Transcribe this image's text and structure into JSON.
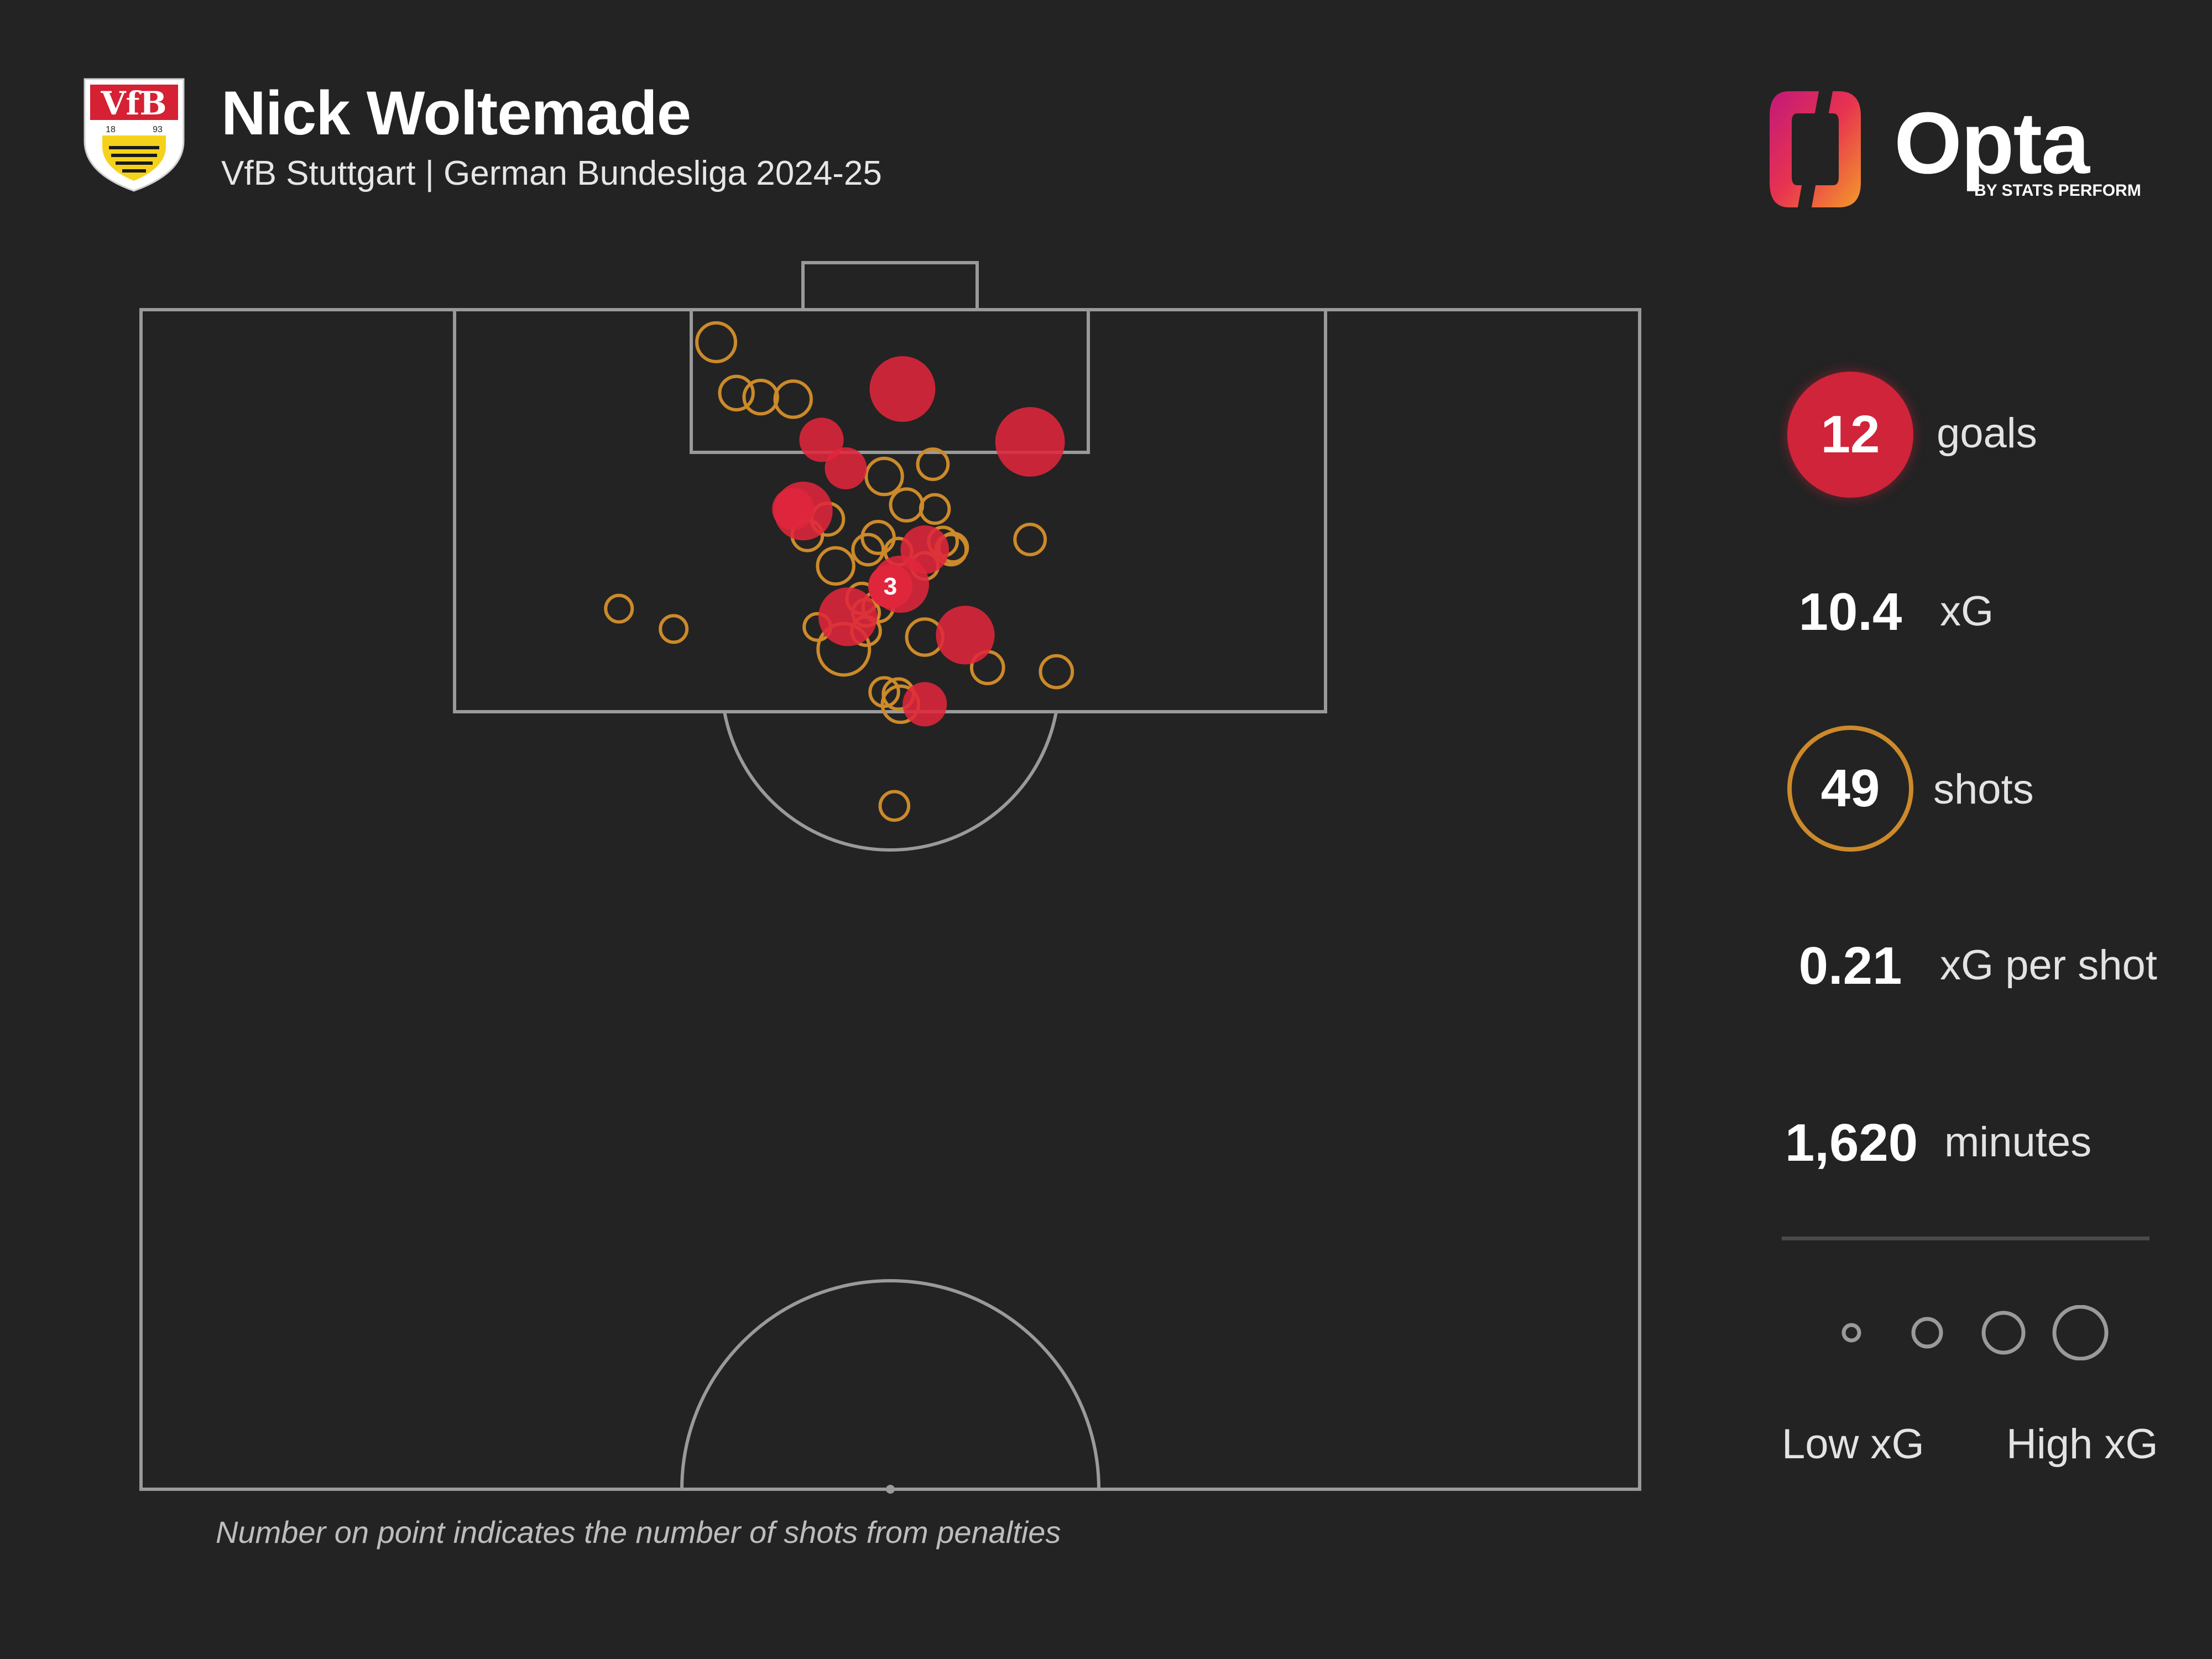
{
  "header": {
    "title": "Nick Woltemade",
    "subtitle": "VfB Stuttgart | German Bundesliga 2024-25"
  },
  "brand": {
    "logo_word": "Opta",
    "logo_sub": "BY STATS PERFORM",
    "crest_lettering": "VfB",
    "crest_year_left": "18",
    "crest_year_right": "93"
  },
  "colors": {
    "background": "#232323",
    "goal": "#e0263b",
    "shot": "#cc8a2a",
    "pitch_lines": "#9a9a9a"
  },
  "stats": {
    "goals": {
      "value": "12",
      "label": "goals"
    },
    "xg": {
      "value": "10.4",
      "label": "xG"
    },
    "shots": {
      "value": "49",
      "label": "shots"
    },
    "xg_per_shot": {
      "value": "0.21",
      "label": "xG per shot"
    },
    "minutes": {
      "value": "1,620",
      "label": "minutes"
    }
  },
  "legend": {
    "low": "Low xG",
    "high": "High xG",
    "sizes": [
      0.05,
      0.2,
      0.4,
      0.7
    ]
  },
  "footnote": "Number on point indicates the number of shots from penalties",
  "chart_data": {
    "type": "scatter",
    "title": "",
    "xlabel": "",
    "ylabel": "",
    "pitch": "half-pitch, attacking upward",
    "units": "x = yards across pitch width (0-74), y = yards from goal line",
    "xlim": [
      0,
      74
    ],
    "ylim": [
      0,
      58
    ],
    "shots": [
      {
        "x": 28.4,
        "y": 1.6,
        "xg": 0.12,
        "goal": false
      },
      {
        "x": 29.4,
        "y": 4.1,
        "xg": 0.08,
        "goal": false
      },
      {
        "x": 30.6,
        "y": 4.3,
        "xg": 0.08,
        "goal": false
      },
      {
        "x": 32.2,
        "y": 4.4,
        "xg": 0.1,
        "goal": false
      },
      {
        "x": 37.6,
        "y": 3.9,
        "xg": 0.4,
        "goal": true
      },
      {
        "x": 43.9,
        "y": 6.5,
        "xg": 0.46,
        "goal": true
      },
      {
        "x": 33.6,
        "y": 6.4,
        "xg": 0.14,
        "goal": true
      },
      {
        "x": 34.8,
        "y": 7.8,
        "xg": 0.12,
        "goal": true
      },
      {
        "x": 36.7,
        "y": 8.2,
        "xg": 0.1,
        "goal": false
      },
      {
        "x": 39.1,
        "y": 7.6,
        "xg": 0.06,
        "goal": false
      },
      {
        "x": 32.7,
        "y": 9.9,
        "xg": 0.3,
        "goal": true
      },
      {
        "x": 32.2,
        "y": 9.8,
        "xg": 0.12,
        "goal": true
      },
      {
        "x": 33.9,
        "y": 10.3,
        "xg": 0.07,
        "goal": false
      },
      {
        "x": 37.8,
        "y": 9.6,
        "xg": 0.07,
        "goal": false
      },
      {
        "x": 39.2,
        "y": 9.8,
        "xg": 0.05,
        "goal": false
      },
      {
        "x": 32.9,
        "y": 11.1,
        "xg": 0.06,
        "goal": false
      },
      {
        "x": 36.4,
        "y": 11.2,
        "xg": 0.07,
        "goal": false
      },
      {
        "x": 35.9,
        "y": 11.8,
        "xg": 0.06,
        "goal": false
      },
      {
        "x": 37.4,
        "y": 11.9,
        "xg": 0.04,
        "goal": false
      },
      {
        "x": 38.7,
        "y": 11.8,
        "xg": 0.18,
        "goal": true
      },
      {
        "x": 39.6,
        "y": 11.4,
        "xg": 0.05,
        "goal": false
      },
      {
        "x": 40.0,
        "y": 11.8,
        "xg": 0.06,
        "goal": false
      },
      {
        "x": 40.1,
        "y": 11.7,
        "xg": 0.05,
        "goal": false
      },
      {
        "x": 43.9,
        "y": 11.3,
        "xg": 0.06,
        "goal": false
      },
      {
        "x": 38.7,
        "y": 12.6,
        "xg": 0.04,
        "goal": false
      },
      {
        "x": 34.3,
        "y": 12.6,
        "xg": 0.1,
        "goal": false
      },
      {
        "x": 37.5,
        "y": 13.5,
        "xg": 0.28,
        "goal": true
      },
      {
        "x": 35.6,
        "y": 14.2,
        "xg": 0.06,
        "goal": false
      },
      {
        "x": 36.4,
        "y": 14.6,
        "xg": 0.06,
        "goal": false
      },
      {
        "x": 35.8,
        "y": 14.9,
        "xg": 0.04,
        "goal": false
      },
      {
        "x": 34.9,
        "y": 15.1,
        "xg": 0.3,
        "goal": true
      },
      {
        "x": 35.8,
        "y": 15.8,
        "xg": 0.05,
        "goal": false
      },
      {
        "x": 33.4,
        "y": 15.6,
        "xg": 0.04,
        "goal": false
      },
      {
        "x": 40.7,
        "y": 16.0,
        "xg": 0.3,
        "goal": true
      },
      {
        "x": 38.7,
        "y": 16.1,
        "xg": 0.1,
        "goal": false
      },
      {
        "x": 34.7,
        "y": 16.7,
        "xg": 0.25,
        "goal": false
      },
      {
        "x": 41.8,
        "y": 17.6,
        "xg": 0.07,
        "goal": false
      },
      {
        "x": 45.2,
        "y": 17.8,
        "xg": 0.07,
        "goal": false
      },
      {
        "x": 36.7,
        "y": 18.8,
        "xg": 0.05,
        "goal": false
      },
      {
        "x": 37.4,
        "y": 18.9,
        "xg": 0.06,
        "goal": false
      },
      {
        "x": 37.5,
        "y": 19.4,
        "xg": 0.1,
        "goal": false
      },
      {
        "x": 38.7,
        "y": 19.4,
        "xg": 0.14,
        "goal": true
      },
      {
        "x": 23.6,
        "y": 14.7,
        "xg": 0.04,
        "goal": false
      },
      {
        "x": 26.3,
        "y": 15.7,
        "xg": 0.04,
        "goal": false
      },
      {
        "x": 37.2,
        "y": 24.4,
        "xg": 0.05,
        "goal": false
      }
    ],
    "penalties": {
      "x": 37.0,
      "y": 13.6,
      "count": "3",
      "goal": true,
      "xg": 0.78
    }
  }
}
